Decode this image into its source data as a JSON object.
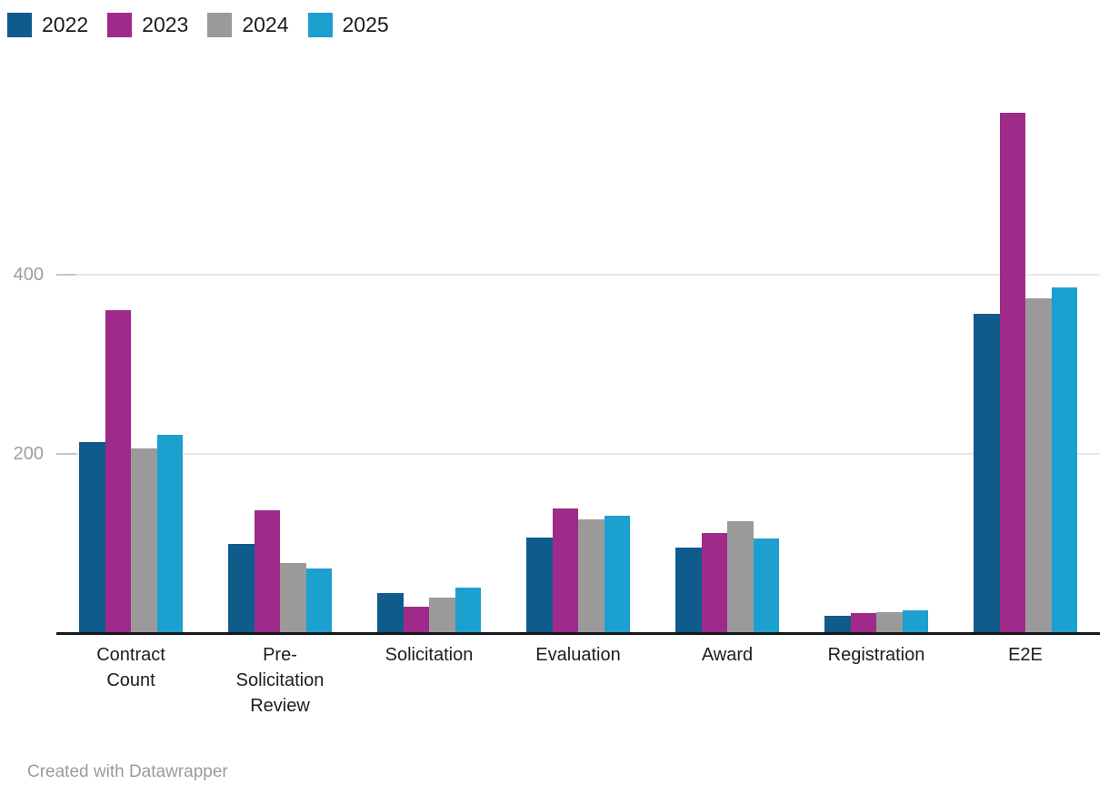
{
  "chart_data": {
    "type": "bar",
    "title": "",
    "xlabel": "",
    "ylabel": "",
    "categories": [
      "Contract Count",
      "Pre-Solicitation Review",
      "Solicitation",
      "Evaluation",
      "Award",
      "Registration",
      "E2E"
    ],
    "series": [
      {
        "name": "2022",
        "color": "#0f5b8c",
        "values": [
          213,
          99,
          44,
          106,
          95,
          18,
          356
        ]
      },
      {
        "name": "2023",
        "color": "#a02a8a",
        "values": [
          360,
          136,
          29,
          139,
          111,
          21,
          581
        ]
      },
      {
        "name": "2024",
        "color": "#9a9a9a",
        "values": [
          206,
          77,
          39,
          126,
          124,
          22,
          374
        ]
      },
      {
        "name": "2025",
        "color": "#1ca0cf",
        "values": [
          221,
          71,
          50,
          130,
          105,
          24,
          386
        ]
      }
    ],
    "yticks": [
      200,
      400
    ],
    "ylim": [
      0,
      600
    ],
    "grid": "horizontal",
    "legend_position": "top-left",
    "axis_color": "#15181b",
    "gridline_color": "#e8e8e8",
    "tick_label_color": "#9e9e9e"
  },
  "footer": {
    "credit": "Created with Datawrapper"
  }
}
